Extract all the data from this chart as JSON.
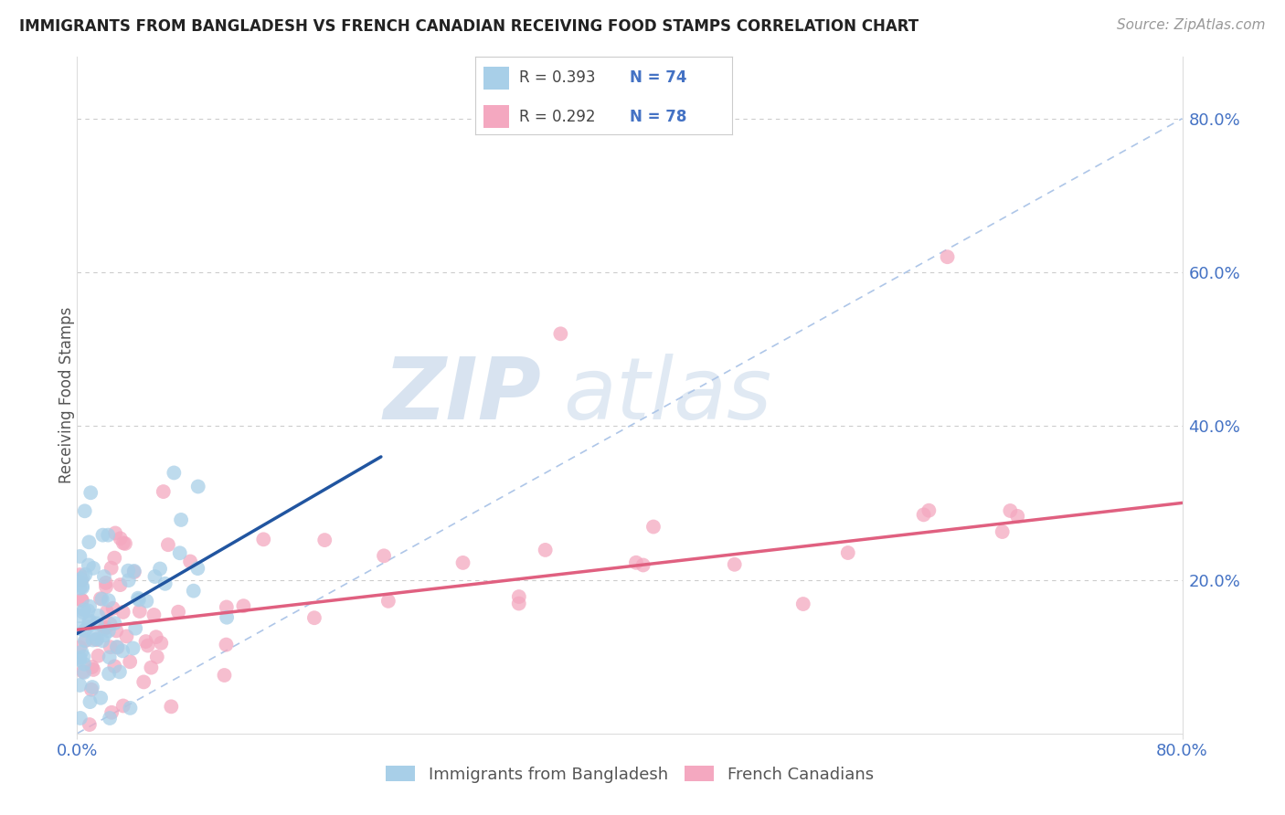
{
  "title": "IMMIGRANTS FROM BANGLADESH VS FRENCH CANADIAN RECEIVING FOOD STAMPS CORRELATION CHART",
  "source": "Source: ZipAtlas.com",
  "ylabel": "Receiving Food Stamps",
  "legend_r1": "0.393",
  "legend_n1": "74",
  "legend_r2": "0.292",
  "legend_n2": "78",
  "color_blue": "#a8cfe8",
  "color_pink": "#f4a8c0",
  "color_blue_line": "#2155a0",
  "color_pink_line": "#e06080",
  "color_blue_text": "#4472C4",
  "legend_label1": "Immigrants from Bangladesh",
  "legend_label2": "French Canadians",
  "watermark_zip": "ZIP",
  "watermark_atlas": "atlas",
  "xlim": [
    0.0,
    0.8
  ],
  "ylim": [
    0.0,
    0.88
  ],
  "ytick_vals": [
    0.0,
    0.2,
    0.4,
    0.6,
    0.8
  ],
  "ytick_labels": [
    "",
    "20.0%",
    "40.0%",
    "60.0%",
    "80.0%"
  ],
  "xtick_vals": [
    0.0,
    0.8
  ],
  "xtick_labels": [
    "0.0%",
    "80.0%"
  ],
  "blue_line_x": [
    0.0,
    0.22
  ],
  "blue_line_y": [
    0.13,
    0.36
  ],
  "pink_line_x": [
    0.0,
    0.8
  ],
  "pink_line_y": [
    0.135,
    0.3
  ],
  "diag_line_x": [
    0.0,
    0.8
  ],
  "diag_line_y": [
    0.0,
    0.8
  ],
  "title_fontsize": 12,
  "source_fontsize": 11,
  "tick_fontsize": 13,
  "legend_fontsize": 13
}
